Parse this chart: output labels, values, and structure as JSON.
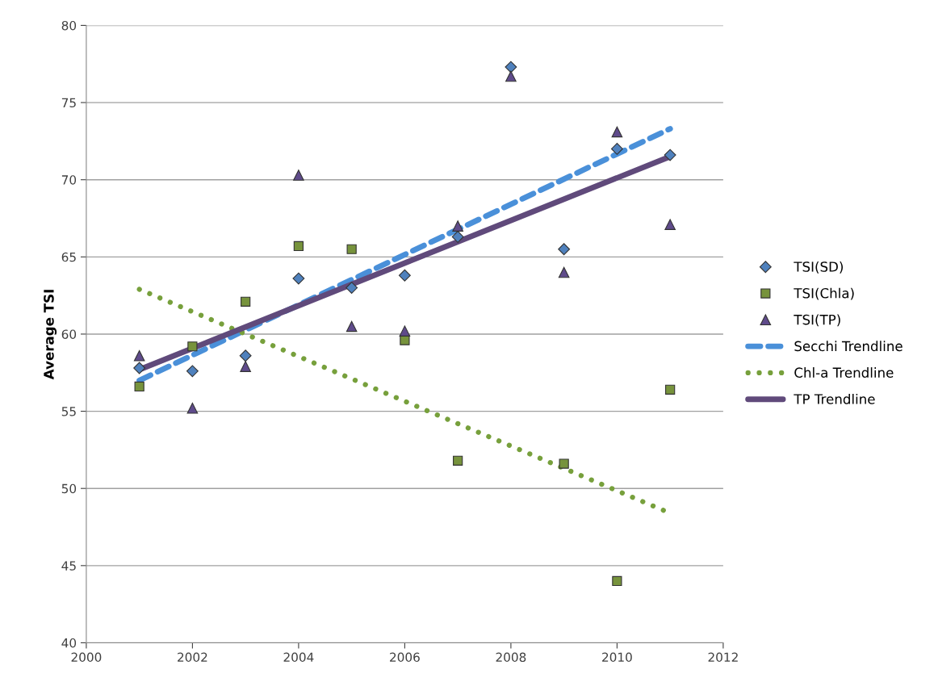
{
  "chart_data": {
    "type": "scatter",
    "ylabel": "Average TSI",
    "xlim": [
      2000,
      2012
    ],
    "xticks": [
      2000,
      2002,
      2004,
      2006,
      2008,
      2010,
      2012
    ],
    "ylim": [
      40,
      80
    ],
    "yticks": [
      40,
      45,
      50,
      55,
      60,
      65,
      70,
      75,
      80
    ],
    "grid": "y",
    "legend": "right",
    "series": [
      {
        "name": "TSI(SD)",
        "marker": "diamond",
        "color": "#4f81bd",
        "x": [
          2001,
          2002,
          2003,
          2004,
          2005,
          2006,
          2007,
          2008,
          2009,
          2010,
          2011
        ],
        "values": [
          57.8,
          57.6,
          58.6,
          63.6,
          63.0,
          63.8,
          66.3,
          77.3,
          65.5,
          72.0,
          71.6
        ]
      },
      {
        "name": "TSI(Chla)",
        "marker": "square",
        "color": "#77933c",
        "x": [
          2001,
          2002,
          2003,
          2004,
          2005,
          2006,
          2007,
          2009,
          2010,
          2011
        ],
        "values": [
          56.6,
          59.2,
          62.1,
          65.7,
          65.5,
          59.6,
          51.8,
          51.6,
          44.0,
          56.4
        ]
      },
      {
        "name": "TSI(TP)",
        "marker": "triangle",
        "color": "#5f4b8b",
        "x": [
          2001,
          2002,
          2003,
          2004,
          2005,
          2006,
          2007,
          2008,
          2009,
          2010,
          2011
        ],
        "values": [
          58.6,
          55.2,
          57.9,
          70.3,
          60.5,
          60.2,
          67.0,
          76.7,
          64.0,
          73.1,
          67.1
        ]
      },
      {
        "name": "Secchi Trendline",
        "type": "line",
        "line_style": "dashed",
        "color": "#4a90d9",
        "x": [
          2001,
          2011
        ],
        "values": [
          57.0,
          73.3
        ]
      },
      {
        "name": "Chl-a Trendline",
        "type": "line",
        "line_style": "dotted",
        "color": "#77a03c",
        "x": [
          2001,
          2011
        ],
        "values": [
          62.9,
          48.4
        ]
      },
      {
        "name": "TP Trendline",
        "type": "line",
        "line_style": "solid",
        "color": "#604a7b",
        "x": [
          2001,
          2011
        ],
        "values": [
          57.7,
          71.5
        ]
      }
    ]
  }
}
